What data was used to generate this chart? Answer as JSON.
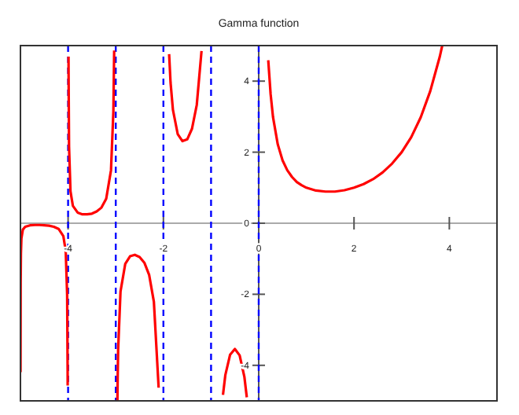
{
  "chart_data": {
    "type": "line",
    "title": "Gamma function",
    "xlim": [
      -5,
      5
    ],
    "ylim": [
      -5,
      5
    ],
    "xticks": [
      -4,
      -2,
      0,
      2,
      4
    ],
    "yticks": [
      -4,
      -2,
      0,
      2,
      4
    ],
    "grid": false,
    "series": [
      {
        "color": "#ff0000",
        "line_style": "solid",
        "x": [
          -4.998,
          -4.995,
          -4.99,
          -4.98,
          -4.95,
          -4.9,
          -4.8,
          -4.7,
          -4.6,
          -4.5,
          -4.4,
          -4.3,
          -4.2,
          -4.1,
          -4.05,
          -4.02,
          -4.01,
          -4.009,
          -4,
          -3.991,
          -3.99,
          -3.98,
          -3.95,
          -3.9,
          -3.8,
          -3.7,
          -3.6,
          -3.5,
          -3.4,
          -3.3,
          -3.2,
          -3.1,
          -3.05,
          -3.033,
          -3,
          -2.965,
          -2.96,
          -2.95,
          -2.9,
          -2.8,
          -2.7,
          -2.6,
          -2.5,
          -2.4,
          -2.3,
          -2.2,
          -2.1,
          -2,
          -1.88,
          -1.85,
          -1.8,
          -1.7,
          -1.6,
          -1.5,
          -1.4,
          -1.3,
          -1.2,
          -1,
          -0.75,
          -0.7,
          -0.6,
          -0.5,
          -0.4,
          -0.3,
          -0.25,
          0,
          0.2,
          0.25,
          0.3,
          0.4,
          0.5,
          0.6,
          0.7,
          0.8,
          0.9,
          1,
          1.2,
          1.4,
          1.46,
          1.6,
          1.8,
          2,
          2.2,
          2.4,
          2.6,
          2.8,
          3,
          3.2,
          3.4,
          3.6,
          3.8,
          3.85
        ],
        "values": [
          -4.19,
          -1.68,
          -0.85,
          -0.43,
          -0.18,
          -0.1,
          -0.06,
          -0.05,
          -0.05,
          -0.06,
          -0.07,
          -0.1,
          -0.16,
          -0.36,
          -0.78,
          -2.02,
          -4.11,
          -4.57,
          null,
          4.69,
          4.23,
          2.15,
          0.9,
          0.49,
          0.3,
          0.25,
          0.25,
          0.27,
          0.33,
          0.44,
          0.69,
          1.49,
          3.14,
          4.86,
          null,
          -4.99,
          -4.39,
          -3.56,
          -1.92,
          -1.14,
          -0.93,
          -0.89,
          -0.95,
          -1.11,
          -1.45,
          -2.21,
          -4.63,
          null,
          4.76,
          3.96,
          3.19,
          2.51,
          2.31,
          2.36,
          2.66,
          3.33,
          4.85,
          null,
          -4.83,
          -4.27,
          -3.7,
          -3.54,
          -3.72,
          -4.33,
          -4.9,
          null,
          4.59,
          3.63,
          2.99,
          2.22,
          1.77,
          1.49,
          1.3,
          1.16,
          1.07,
          1,
          0.92,
          0.89,
          0.89,
          0.89,
          0.93,
          1,
          1.1,
          1.24,
          1.43,
          1.68,
          2,
          2.42,
          2.98,
          3.72,
          4.69,
          4.99
        ]
      }
    ],
    "ref_lines": [
      {
        "axis": "x",
        "value": -4,
        "color": "#0000ff",
        "line_style": "dashed"
      },
      {
        "axis": "x",
        "value": -3,
        "color": "#0000ff",
        "line_style": "dashed"
      },
      {
        "axis": "x",
        "value": -2,
        "color": "#0000ff",
        "line_style": "dashed"
      },
      {
        "axis": "x",
        "value": -1,
        "color": "#0000ff",
        "line_style": "dashed"
      },
      {
        "axis": "x",
        "value": 0,
        "color": "#0000ff",
        "line_style": "dashed"
      }
    ]
  }
}
